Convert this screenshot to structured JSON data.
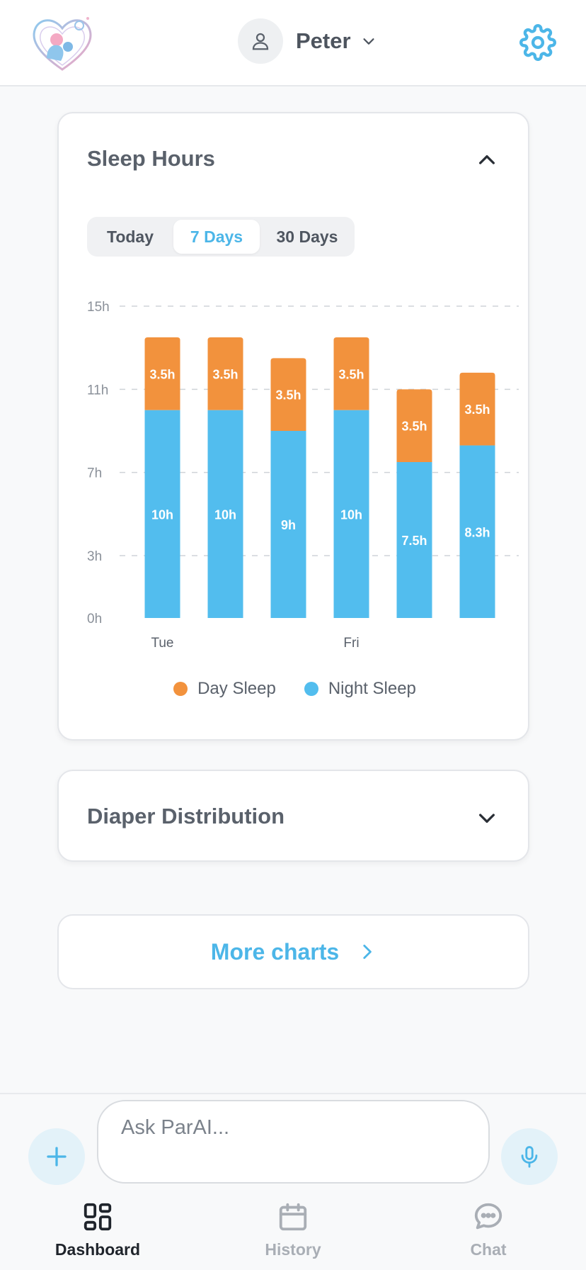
{
  "header": {
    "user_name": "Peter"
  },
  "colors": {
    "accent": "#4cb6e8",
    "day_sleep": "#f2923d",
    "night_sleep": "#52bdee"
  },
  "sleep_card": {
    "title": "Sleep Hours",
    "tabs": [
      {
        "label": "Today",
        "active": false
      },
      {
        "label": "7 Days",
        "active": true
      },
      {
        "label": "30 Days",
        "active": false
      }
    ]
  },
  "chart_data": {
    "type": "bar",
    "stacked": true,
    "categories": [
      "Tue",
      "",
      "",
      "Fri",
      "",
      ""
    ],
    "series": [
      {
        "name": "Night Sleep",
        "values": [
          10,
          10,
          9,
          10,
          7.5,
          8.3
        ],
        "labels": [
          "10h",
          "10h",
          "9h",
          "10h",
          "7.5h",
          "8.3h"
        ]
      },
      {
        "name": "Day Sleep",
        "values": [
          3.5,
          3.5,
          3.5,
          3.5,
          3.5,
          3.5
        ],
        "labels": [
          "3.5h",
          "3.5h",
          "3.5h",
          "3.5h",
          "3.5h",
          "3.5h"
        ]
      }
    ],
    "y_ticks": [
      0,
      3,
      7,
      11,
      15
    ],
    "y_tick_labels": [
      "0h",
      "3h",
      "7h",
      "11h",
      "15h"
    ],
    "ylim": [
      0,
      15
    ],
    "grid": true,
    "legend_position": "bottom"
  },
  "legend": {
    "day": "Day Sleep",
    "night": "Night Sleep"
  },
  "diaper_card": {
    "title": "Diaper Distribution"
  },
  "more_charts": {
    "label": "More charts"
  },
  "ask": {
    "placeholder": "Ask ParAI..."
  },
  "bottom_nav": {
    "dashboard": "Dashboard",
    "history": "History",
    "chat": "Chat"
  }
}
